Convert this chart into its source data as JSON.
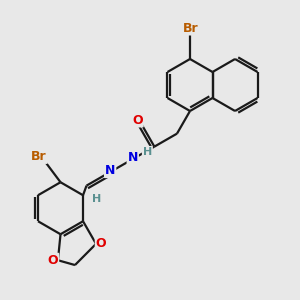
{
  "bg_color": "#e8e8e8",
  "bond_color": "#1a1a1a",
  "bond_width": 1.6,
  "atom_colors": {
    "O": "#e00000",
    "N": "#0000e0",
    "Br": "#b85c00",
    "H_cyan": "#5a9090",
    "C": "#1a1a1a"
  }
}
